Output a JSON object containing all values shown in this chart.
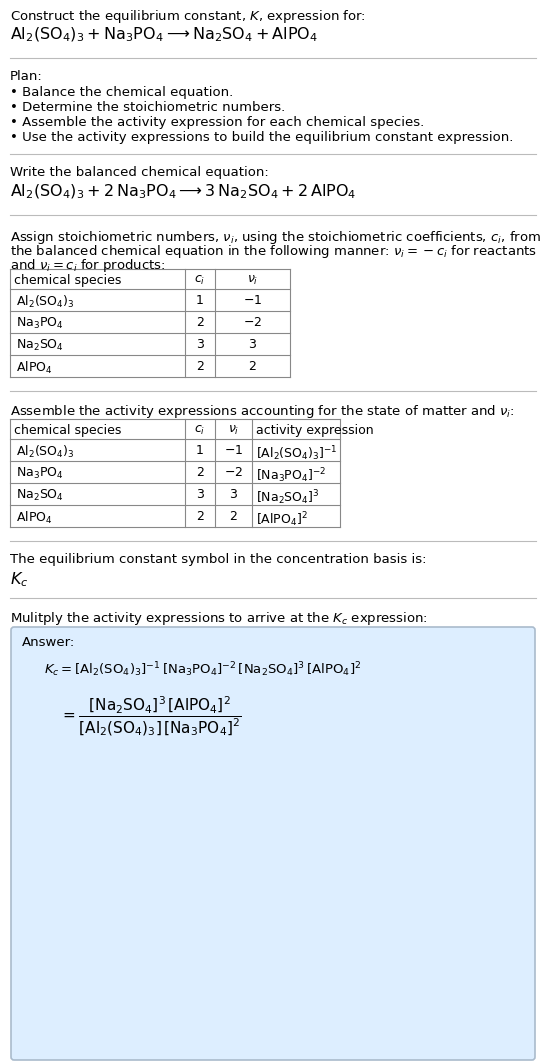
{
  "bg_color": "#ffffff",
  "answer_bg_color": "#ddeeff",
  "answer_border_color": "#aabbcc",
  "text_color": "#000000",
  "line_color": "#bbbbbb",
  "title_line1": "Construct the equilibrium constant, $K$, expression for:",
  "title_line2": "$\\mathrm{Al_2(SO_4)_3 + Na_3PO_4 \\longrightarrow Na_2SO_4 + AlPO_4}$",
  "plan_header": "Plan:",
  "plan_items": [
    "• Balance the chemical equation.",
    "• Determine the stoichiometric numbers.",
    "• Assemble the activity expression for each chemical species.",
    "• Use the activity expressions to build the equilibrium constant expression."
  ],
  "balanced_header": "Write the balanced chemical equation:",
  "balanced_eq": "$\\mathrm{Al_2(SO_4)_3 + 2\\,Na_3PO_4 \\longrightarrow 3\\,Na_2SO_4 + 2\\,AlPO_4}$",
  "stoich_intro1": "Assign stoichiometric numbers, $\\nu_i$, using the stoichiometric coefficients, $c_i$, from",
  "stoich_intro2": "the balanced chemical equation in the following manner: $\\nu_i = -c_i$ for reactants",
  "stoich_intro3": "and $\\nu_i = c_i$ for products:",
  "table1_headers": [
    "chemical species",
    "$c_i$",
    "$\\nu_i$"
  ],
  "table1_rows": [
    [
      "$\\mathrm{Al_2(SO_4)_3}$",
      "1",
      "$-1$"
    ],
    [
      "$\\mathrm{Na_3PO_4}$",
      "2",
      "$-2$"
    ],
    [
      "$\\mathrm{Na_2SO_4}$",
      "3",
      "3"
    ],
    [
      "$\\mathrm{AlPO_4}$",
      "2",
      "2"
    ]
  ],
  "activity_intro": "Assemble the activity expressions accounting for the state of matter and $\\nu_i$:",
  "table2_headers": [
    "chemical species",
    "$c_i$",
    "$\\nu_i$",
    "activity expression"
  ],
  "table2_rows": [
    [
      "$\\mathrm{Al_2(SO_4)_3}$",
      "1",
      "$-1$",
      "$[\\mathrm{Al_2(SO_4)_3}]^{-1}$"
    ],
    [
      "$\\mathrm{Na_3PO_4}$",
      "2",
      "$-2$",
      "$[\\mathrm{Na_3PO_4}]^{-2}$"
    ],
    [
      "$\\mathrm{Na_2SO_4}$",
      "3",
      "3",
      "$[\\mathrm{Na_2SO_4}]^{3}$"
    ],
    [
      "$\\mathrm{AlPO_4}$",
      "2",
      "2",
      "$[\\mathrm{AlPO_4}]^{2}$"
    ]
  ],
  "kc_symbol_text": "The equilibrium constant symbol in the concentration basis is:",
  "kc_symbol": "$K_c$",
  "multiply_text": "Mulitply the activity expressions to arrive at the $K_c$ expression:",
  "answer_label": "Answer:",
  "answer_line1": "$K_c = [\\mathrm{Al_2(SO_4)_3}]^{-1}\\,[\\mathrm{Na_3PO_4}]^{-2}\\,[\\mathrm{Na_2SO_4}]^{3}\\,[\\mathrm{AlPO_4}]^{2}$",
  "answer_line2": "$= \\dfrac{[\\mathrm{Na_2SO_4}]^{3}\\,[\\mathrm{AlPO_4}]^{2}}{[\\mathrm{Al_2(SO_4)_3}]\\,[\\mathrm{Na_3PO_4}]^{2}}$"
}
